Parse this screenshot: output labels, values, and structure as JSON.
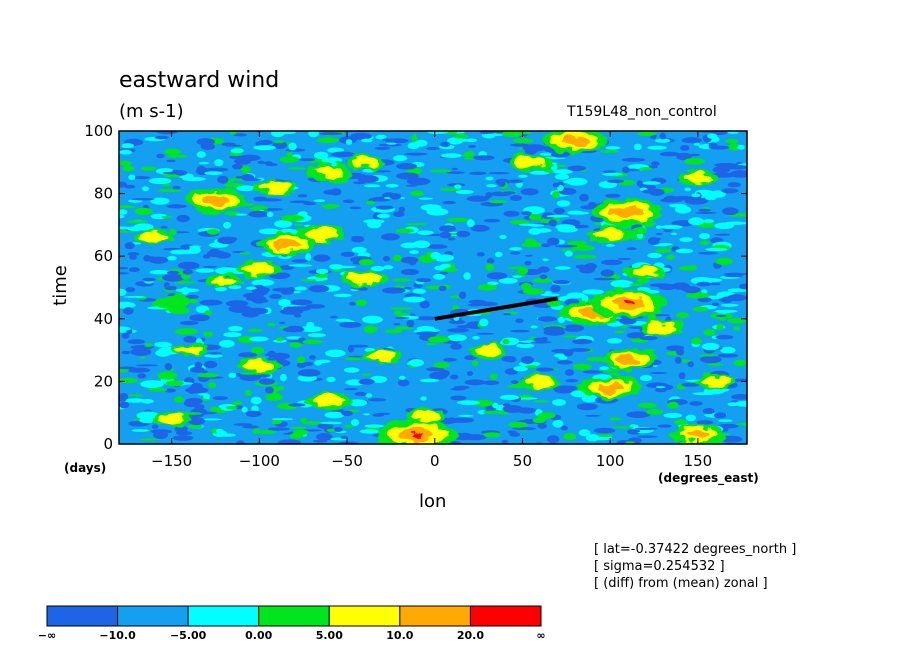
{
  "chart_data": {
    "type": "heatmap",
    "title": "eastward wind",
    "units": "(m s-1)",
    "run_label": "T159L48_non_control",
    "xlabel": "lon",
    "xunits": "(degrees_east)",
    "ylabel": "time",
    "yunits": "(days)",
    "xlim": [
      -180,
      178
    ],
    "ylim": [
      0,
      100
    ],
    "xticks": [
      -150,
      -100,
      -50,
      0,
      50,
      100,
      150
    ],
    "yticks": [
      0,
      20,
      40,
      60,
      80,
      100
    ],
    "annotation_line": {
      "x": [
        0,
        70
      ],
      "y": [
        40,
        46.5
      ]
    },
    "colorbar": {
      "bounds": [
        "-∞",
        "-10.0",
        "-5.00",
        "0.00",
        "5.00",
        "10.0",
        "20.0",
        "∞"
      ],
      "colors": [
        "#1e64e6",
        "#14a0f0",
        "#00ffff",
        "#00e61e",
        "#ffff00",
        "#ffaa00",
        "#ff0000"
      ]
    },
    "background_color": "#14a0f0",
    "feature_ranges": [
      "0.00 to 5.00",
      "5.00 to 10.0",
      "10.0 to 20.0",
      "20.0 to ∞"
    ],
    "features": [
      {
        "lon": -125,
        "day": 78,
        "value": 14
      },
      {
        "lon": -90,
        "day": 82,
        "value": 8
      },
      {
        "lon": -60,
        "day": 87,
        "value": 7
      },
      {
        "lon": -40,
        "day": 90,
        "value": 6
      },
      {
        "lon": -85,
        "day": 64,
        "value": 13
      },
      {
        "lon": -65,
        "day": 67,
        "value": 9
      },
      {
        "lon": -100,
        "day": 56,
        "value": 7
      },
      {
        "lon": -40,
        "day": 53,
        "value": 8
      },
      {
        "lon": -120,
        "day": 52,
        "value": 6
      },
      {
        "lon": -150,
        "day": 45,
        "value": 4
      },
      {
        "lon": -160,
        "day": 66,
        "value": 5
      },
      {
        "lon": -140,
        "day": 30,
        "value": 5
      },
      {
        "lon": -100,
        "day": 25,
        "value": 9
      },
      {
        "lon": -60,
        "day": 14,
        "value": 8
      },
      {
        "lon": -150,
        "day": 8,
        "value": 5
      },
      {
        "lon": -30,
        "day": 28,
        "value": 5
      },
      {
        "lon": -10,
        "day": 3,
        "value": 22
      },
      {
        "lon": -5,
        "day": 9,
        "value": 6
      },
      {
        "lon": 30,
        "day": 30,
        "value": 5
      },
      {
        "lon": 60,
        "day": 20,
        "value": 6
      },
      {
        "lon": 80,
        "day": 97,
        "value": 15
      },
      {
        "lon": 55,
        "day": 90,
        "value": 8
      },
      {
        "lon": 110,
        "day": 74,
        "value": 18
      },
      {
        "lon": 100,
        "day": 67,
        "value": 9
      },
      {
        "lon": 90,
        "day": 42,
        "value": 16
      },
      {
        "lon": 110,
        "day": 45,
        "value": 20
      },
      {
        "lon": 130,
        "day": 37,
        "value": 8
      },
      {
        "lon": 110,
        "day": 27,
        "value": 12
      },
      {
        "lon": 100,
        "day": 18,
        "value": 14
      },
      {
        "lon": 150,
        "day": 3,
        "value": 12
      },
      {
        "lon": 160,
        "day": 20,
        "value": 6
      },
      {
        "lon": 150,
        "day": 85,
        "value": 5
      },
      {
        "lon": 120,
        "day": 55,
        "value": 6
      }
    ]
  },
  "notes": [
    "[ lat=-0.37422 degrees_north ]",
    "[ sigma=0.254532 ]",
    "[ (diff) from (mean) zonal ]"
  ]
}
